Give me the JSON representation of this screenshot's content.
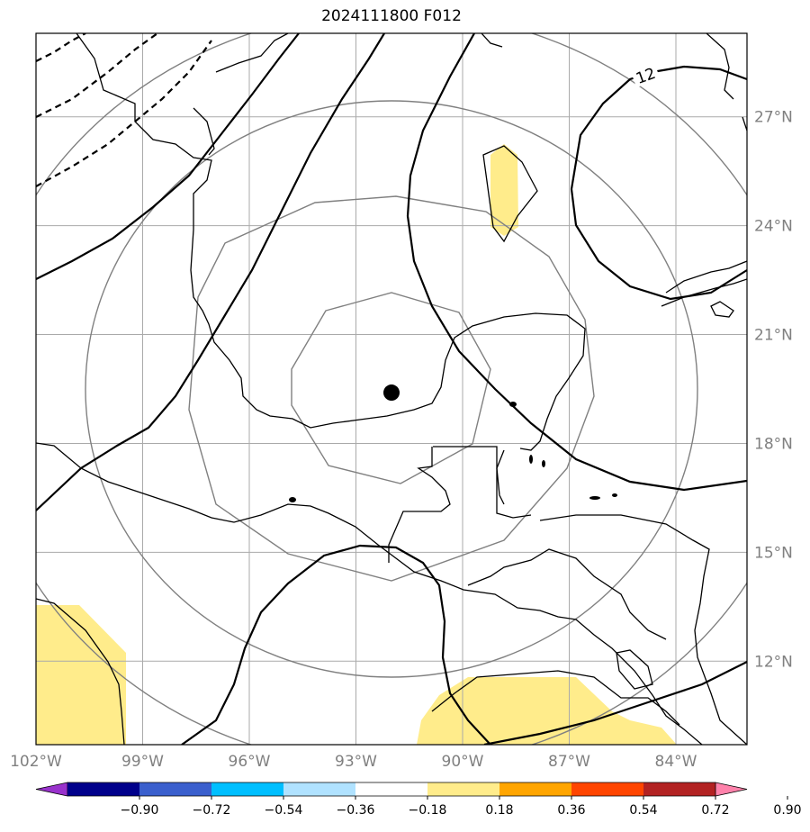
{
  "title": "2024111800 F012",
  "chart_data": {
    "type": "contour map",
    "lon_range": [
      -102,
      -82
    ],
    "lat_range": [
      9.7,
      29.3
    ],
    "lon_ticks": [
      -102,
      -99,
      -96,
      -93,
      -90,
      -87,
      -84
    ],
    "lon_labels": [
      "102°W",
      "99°W",
      "96°W",
      "93°W",
      "90°W",
      "87°W",
      "84°W"
    ],
    "lat_ticks": [
      12,
      15,
      18,
      21,
      24,
      27
    ],
    "lat_labels": [
      "12°N",
      "15°N",
      "18°N",
      "21°N",
      "24°N",
      "27°N"
    ],
    "grid": true,
    "center_marker": {
      "lon": -92.0,
      "lat": 19.4
    },
    "contour_label": "12",
    "colorbar": {
      "ticks": [
        "−0.90",
        "−0.72",
        "−0.54",
        "−0.36",
        "−0.18",
        "0.18",
        "0.36",
        "0.54",
        "0.72",
        "0.90"
      ],
      "colors": [
        "#9932cc",
        "#00008b",
        "#3a5fcd",
        "#00bfff",
        "#b0e2ff",
        "#ffffff",
        "#ffec8b",
        "#ffa500",
        "#ff4500",
        "#b22222",
        "#ff82ab"
      ],
      "extend": "both"
    }
  }
}
